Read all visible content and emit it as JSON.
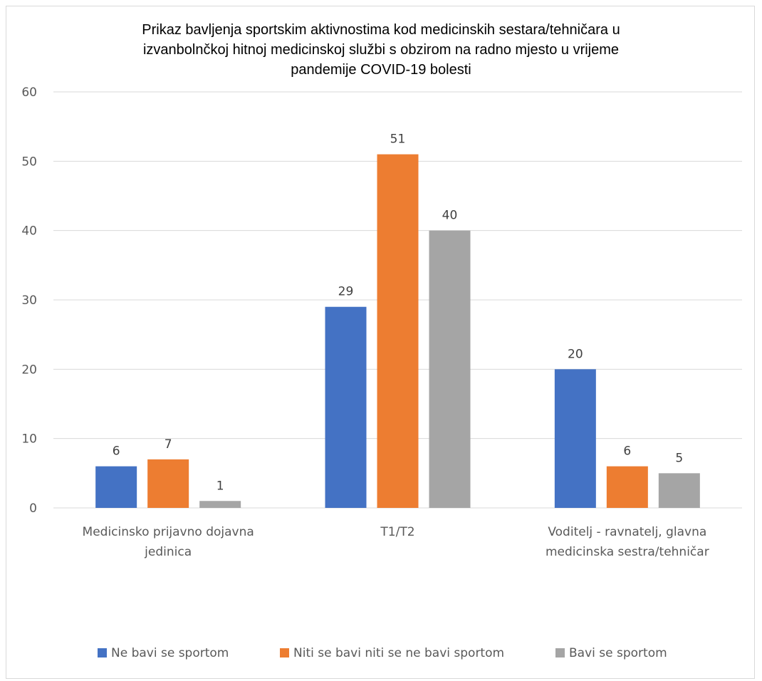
{
  "chart_data": {
    "type": "bar",
    "title_lines": [
      "Prikaz bavljenja sportskim aktivnostima kod medicinskih sestara/tehničara u",
      "izvanbolnčkoj hitnoj medicinskoj službi s obzirom na radno mjesto u vrijeme",
      "pandemije COVID-19 bolesti"
    ],
    "categories": [
      [
        "Medicinsko prijavno dojavna",
        "jedinica"
      ],
      [
        "T1/T2"
      ],
      [
        "Voditelj - ravnatelj, glavna",
        "medicinska sestra/tehničar"
      ]
    ],
    "series": [
      {
        "name": "Ne bavi se sportom",
        "color": "#4472c4",
        "values": [
          6,
          29,
          20
        ]
      },
      {
        "name": "Niti se bavi niti se ne bavi sportom",
        "color": "#ed7d31",
        "values": [
          7,
          51,
          6
        ]
      },
      {
        "name": "Bavi se sportom",
        "color": "#a5a5a5",
        "values": [
          1,
          40,
          5
        ]
      }
    ],
    "ylim": [
      0,
      60
    ],
    "yticks": [
      0,
      10,
      20,
      30,
      40,
      50,
      60
    ],
    "grid": true,
    "legend_position": "bottom"
  }
}
